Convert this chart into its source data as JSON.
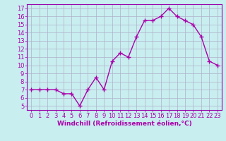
{
  "x": [
    0,
    1,
    2,
    3,
    4,
    5,
    6,
    7,
    8,
    9,
    10,
    11,
    12,
    13,
    14,
    15,
    16,
    17,
    18,
    19,
    20,
    21,
    22,
    23
  ],
  "y": [
    7,
    7,
    7,
    7,
    6.5,
    6.5,
    5,
    7,
    8.5,
    7,
    10.5,
    11.5,
    11,
    13.5,
    15.5,
    15.5,
    16,
    17,
    16,
    15.5,
    15,
    13.5,
    10.5,
    10
  ],
  "line_color": "#aa00aa",
  "marker": "+",
  "marker_size": 4,
  "marker_edge_width": 1.0,
  "bg_color": "#c8eef0",
  "grid_color": "#b0b0c8",
  "xlabel": "Windchill (Refroidissement éolien,°C)",
  "xlabel_fontsize": 6.5,
  "yticks": [
    5,
    6,
    7,
    8,
    9,
    10,
    11,
    12,
    13,
    14,
    15,
    16,
    17
  ],
  "xticks": [
    0,
    1,
    2,
    3,
    4,
    5,
    6,
    7,
    8,
    9,
    10,
    11,
    12,
    13,
    14,
    15,
    16,
    17,
    18,
    19,
    20,
    21,
    22,
    23
  ],
  "ylim": [
    4.5,
    17.5
  ],
  "xlim": [
    -0.5,
    23.5
  ],
  "tick_fontsize": 6.0,
  "line_width": 1.0,
  "spine_color": "#9900aa",
  "bottom_border_color": "#9900aa"
}
